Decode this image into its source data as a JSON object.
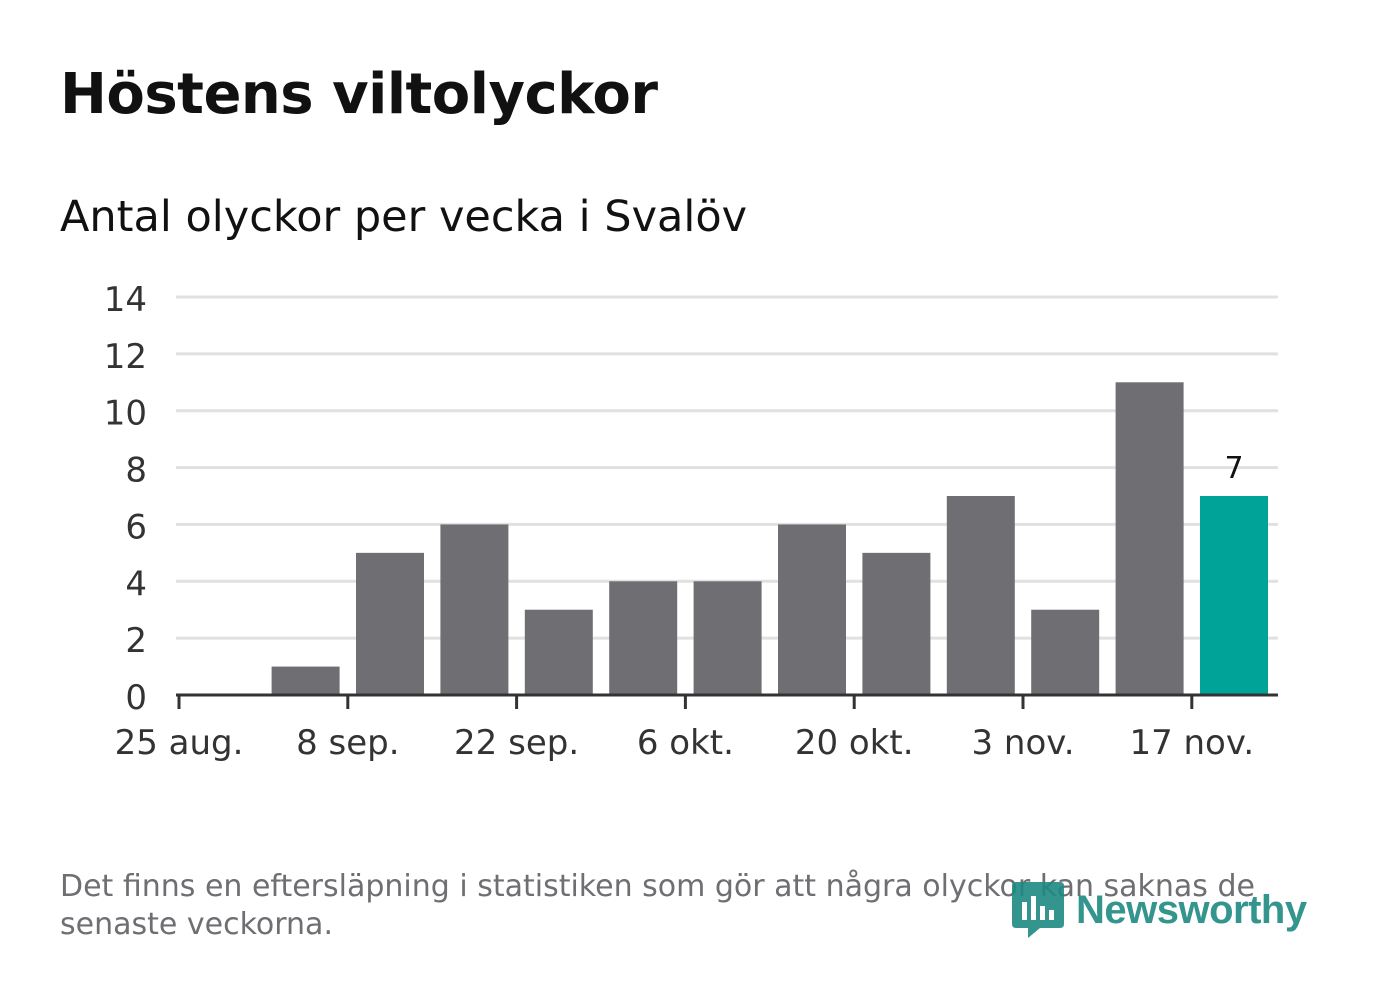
{
  "title": "Höstens viltolyckor",
  "subtitle": "Antal olyckor per vecka i Svalöv",
  "footnote": "Det finns en eftersläpning i statistiken som gör att några olyckor kan saknas de senaste veckorna.",
  "logo": {
    "text": "Newsworthy",
    "icon": "newsworthy-bar-icon"
  },
  "colors": {
    "bar": "#6f6e73",
    "highlight": "#00a398",
    "grid": "#e1e1e1",
    "axis": "#333333",
    "text": "#333333"
  },
  "chart_data": {
    "type": "bar",
    "title": "Antal olyckor per vecka i Svalöv",
    "xlabel": "",
    "ylabel": "",
    "ylim": [
      0,
      14
    ],
    "yticks": [
      0,
      2,
      4,
      6,
      8,
      10,
      12,
      14
    ],
    "xtick_labels": [
      "25 aug.",
      "8 sep.",
      "22 sep.",
      "6 okt.",
      "20 okt.",
      "3 nov.",
      "17 nov."
    ],
    "weeks_from_start": [
      0,
      1,
      2,
      3,
      4,
      5,
      6,
      7,
      8,
      9,
      10,
      11,
      12
    ],
    "values": [
      0,
      1,
      5,
      6,
      3,
      4,
      4,
      6,
      5,
      7,
      3,
      11,
      7
    ],
    "highlight_index": 12,
    "highlight_label": "7",
    "grid": true
  }
}
